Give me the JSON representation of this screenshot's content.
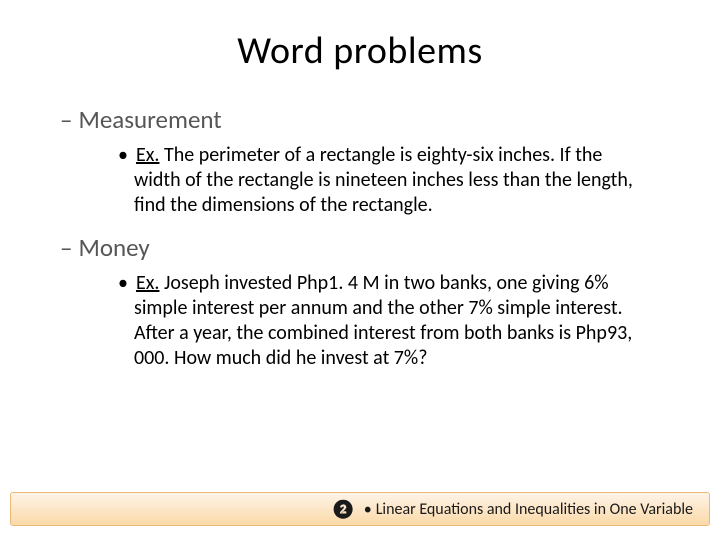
{
  "title": "Word problems",
  "sections": [
    {
      "heading": "Measurement",
      "examples": [
        {
          "label": "Ex.",
          "text": "The perimeter of a rectangle is eighty-six inches. If the width of the rectangle is nineteen inches less than the length, find the dimensions of the rectangle."
        }
      ]
    },
    {
      "heading": "Money",
      "examples": [
        {
          "label": "Ex.",
          "text": "Joseph invested Php1. 4 M in two banks, one giving 6% simple interest per annum and the other 7% simple interest. After a year, the combined interest from both banks is Php93, 000. How much did he invest at 7%?"
        }
      ]
    }
  ],
  "footer": {
    "icon": "❷",
    "separator": "•",
    "text": "Linear Equations and Inequalities in One Variable"
  },
  "colors": {
    "title_color": "#000000",
    "heading_color": "#565656",
    "body_color": "#000000",
    "footer_bg_top": "#fef4e8",
    "footer_bg_bottom": "#fbd9a8",
    "footer_border": "#e8b978",
    "background": "#ffffff"
  },
  "typography": {
    "title_fontsize": 38,
    "heading_fontsize": 25,
    "body_fontsize": 20,
    "footer_fontsize": 16,
    "font_family": "Calibri"
  }
}
